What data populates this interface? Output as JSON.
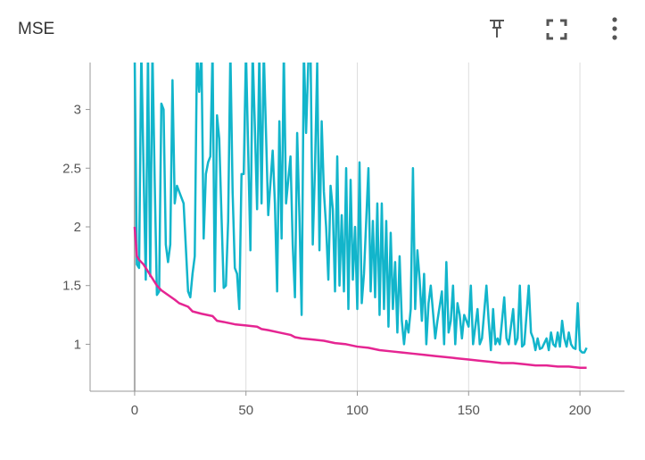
{
  "chart_data": {
    "type": "line",
    "title": "MSE",
    "xlim": [
      -20,
      220
    ],
    "ylim": [
      0.6,
      3.4
    ],
    "xticks": [
      0,
      50,
      100,
      150,
      200
    ],
    "yticks": [
      1,
      1.5,
      2,
      2.5,
      3
    ],
    "grid": "x",
    "series": [
      {
        "color": "#12b5cb",
        "x": [
          0,
          1,
          2,
          3,
          4,
          5,
          6,
          7,
          8,
          9,
          10,
          11,
          12,
          13,
          14,
          15,
          16,
          17,
          18,
          19,
          20,
          22,
          24,
          25,
          26,
          27,
          28,
          29,
          30,
          31,
          32,
          33,
          34,
          35,
          36,
          37,
          38,
          39,
          40,
          41,
          42,
          43,
          44,
          45,
          46,
          47,
          48,
          49,
          50,
          51,
          52,
          53,
          54,
          55,
          56,
          57,
          58,
          60,
          62,
          63,
          64,
          65,
          66,
          67,
          68,
          70,
          71,
          72,
          73,
          74,
          75,
          76,
          77,
          78,
          79,
          80,
          81,
          82,
          83,
          84,
          85,
          86,
          87,
          88,
          89,
          90,
          91,
          92,
          93,
          94,
          95,
          96,
          97,
          98,
          99,
          100,
          101,
          102,
          103,
          105,
          106,
          107,
          108,
          109,
          110,
          111,
          112,
          113,
          114,
          115,
          116,
          117,
          118,
          119,
          120,
          121,
          122,
          123,
          124,
          125,
          126,
          127,
          128,
          129,
          130,
          131,
          132,
          133,
          135,
          136,
          138,
          139,
          140,
          141,
          142,
          143,
          144,
          145,
          146,
          147,
          148,
          150,
          151,
          152,
          154,
          155,
          156,
          158,
          159,
          160,
          161,
          162,
          163,
          164,
          166,
          167,
          168,
          170,
          171,
          172,
          173,
          174,
          175,
          177,
          178,
          179,
          180,
          181,
          182,
          183,
          185,
          186,
          187,
          188,
          189,
          190,
          191,
          192,
          193,
          194,
          195,
          196,
          197,
          198,
          199,
          200,
          201,
          202,
          203
        ],
        "values": [
          3.5,
          1.68,
          1.65,
          3.5,
          2.5,
          1.55,
          3.5,
          1.58,
          3.5,
          2.4,
          1.42,
          1.45,
          3.05,
          3.0,
          1.85,
          1.7,
          1.85,
          3.25,
          2.2,
          2.35,
          2.3,
          2.2,
          1.45,
          1.4,
          1.6,
          1.75,
          3.5,
          3.15,
          3.5,
          1.9,
          2.45,
          2.55,
          2.6,
          3.5,
          1.45,
          2.95,
          2.75,
          2.1,
          1.48,
          1.5,
          2.05,
          3.5,
          2.3,
          1.65,
          1.6,
          1.3,
          2.45,
          2.45,
          3.5,
          2.65,
          1.8,
          3.5,
          2.85,
          2.15,
          3.5,
          2.2,
          3.5,
          2.1,
          2.65,
          2.2,
          1.45,
          2.9,
          1.9,
          3.5,
          2.2,
          2.6,
          1.85,
          1.4,
          2.8,
          2.1,
          1.25,
          3.5,
          2.8,
          3.4,
          3.5,
          1.85,
          2.5,
          3.4,
          1.8,
          2.9,
          2.3,
          2.0,
          1.55,
          2.35,
          2.15,
          1.45,
          2.6,
          1.5,
          2.1,
          1.45,
          2.5,
          1.3,
          2.4,
          1.55,
          2.0,
          1.3,
          2.55,
          1.35,
          1.6,
          2.5,
          1.45,
          2.05,
          1.4,
          2.2,
          1.25,
          2.2,
          1.3,
          2.05,
          1.15,
          1.95,
          1.3,
          1.7,
          1.1,
          1.75,
          1.2,
          1.0,
          1.2,
          1.1,
          1.3,
          2.5,
          1.3,
          1.8,
          1.55,
          1.2,
          1.6,
          1.0,
          1.35,
          1.5,
          1.05,
          1.2,
          1.45,
          1.0,
          1.7,
          1.1,
          1.2,
          1.5,
          1.0,
          1.35,
          1.25,
          1.05,
          1.25,
          1.15,
          1.5,
          1.0,
          1.3,
          1.0,
          1.05,
          1.5,
          1.2,
          0.95,
          1.3,
          1.0,
          1.05,
          1.0,
          1.4,
          1.05,
          1.0,
          1.3,
          1.0,
          1.05,
          1.5,
          0.98,
          1.0,
          1.5,
          1.1,
          1.05,
          0.95,
          1.05,
          0.96,
          0.97,
          1.05,
          0.95,
          1.1,
          1.0,
          0.98,
          1.1,
          0.98,
          1.2,
          1.05,
          0.98,
          1.1,
          1.0,
          0.97,
          0.96,
          1.35,
          0.95,
          0.93,
          0.93,
          0.97
        ]
      },
      {
        "color": "#e52592",
        "x": [
          0,
          1,
          2,
          4,
          6,
          8,
          10,
          12,
          15,
          18,
          20,
          24,
          26,
          30,
          35,
          37,
          40,
          45,
          50,
          55,
          57,
          60,
          65,
          70,
          72,
          75,
          80,
          85,
          90,
          95,
          100,
          105,
          110,
          115,
          120,
          125,
          130,
          135,
          140,
          145,
          150,
          155,
          160,
          165,
          170,
          175,
          180,
          185,
          190,
          195,
          200,
          203
        ],
        "values": [
          2.0,
          1.75,
          1.72,
          1.68,
          1.62,
          1.56,
          1.5,
          1.46,
          1.42,
          1.38,
          1.35,
          1.32,
          1.28,
          1.26,
          1.24,
          1.2,
          1.19,
          1.17,
          1.16,
          1.15,
          1.13,
          1.12,
          1.1,
          1.08,
          1.06,
          1.05,
          1.04,
          1.03,
          1.01,
          1.0,
          0.98,
          0.97,
          0.95,
          0.94,
          0.93,
          0.92,
          0.91,
          0.9,
          0.89,
          0.88,
          0.87,
          0.86,
          0.85,
          0.84,
          0.84,
          0.83,
          0.82,
          0.82,
          0.81,
          0.81,
          0.8,
          0.8
        ]
      }
    ]
  }
}
